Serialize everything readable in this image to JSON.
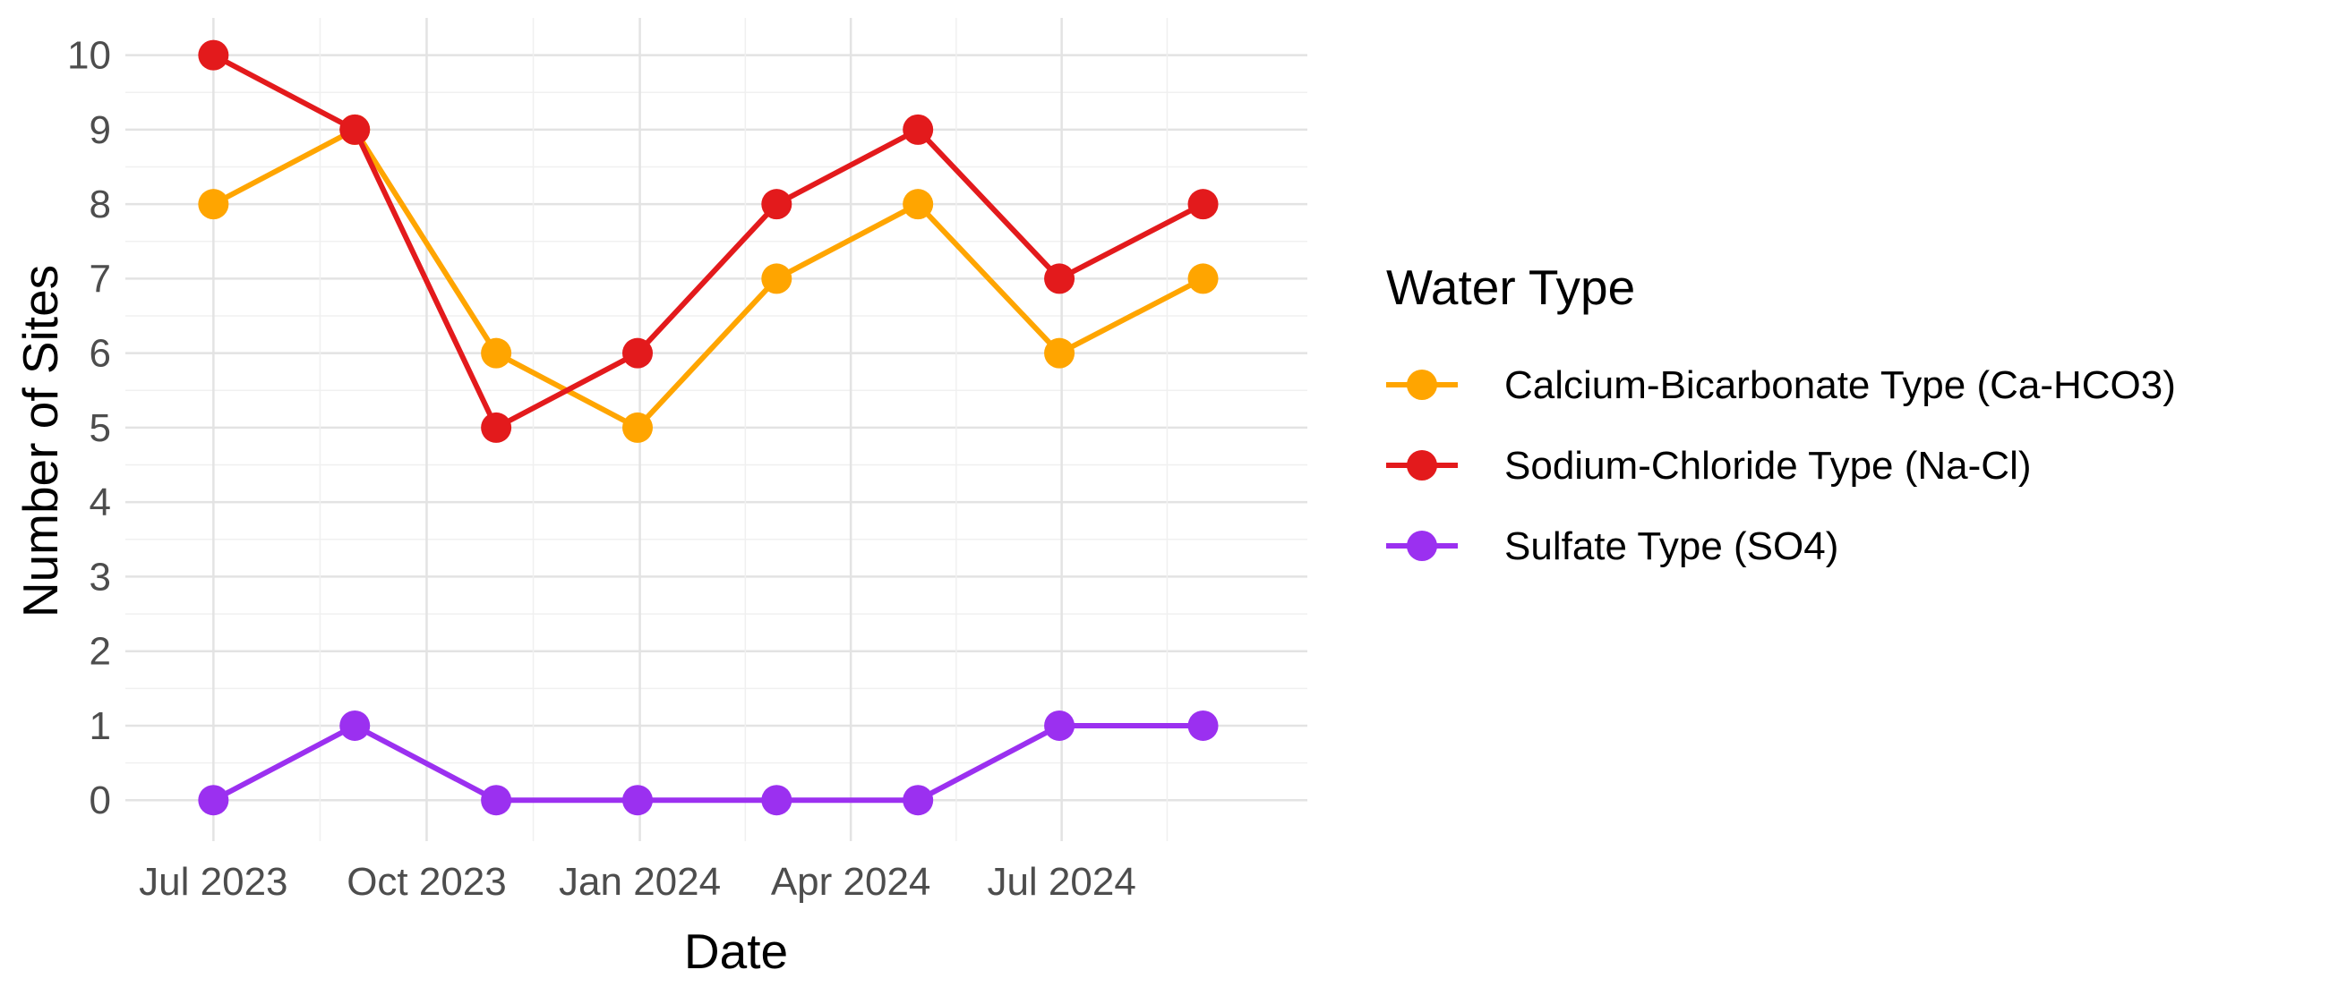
{
  "chart_data": {
    "type": "line",
    "xlabel": "Date",
    "ylabel": "Number of Sites",
    "x": [
      "2023-07-01",
      "2023-08-31",
      "2023-10-31",
      "2023-12-31",
      "2024-02-29",
      "2024-04-30",
      "2024-06-30",
      "2024-08-31"
    ],
    "x_ticks": [
      {
        "date": "2023-07-01",
        "label": "Jul 2023"
      },
      {
        "date": "2023-10-01",
        "label": "Oct 2023"
      },
      {
        "date": "2024-01-01",
        "label": "Jan 2024"
      },
      {
        "date": "2024-04-01",
        "label": "Apr 2024"
      },
      {
        "date": "2024-07-01",
        "label": "Jul 2024"
      }
    ],
    "xlim": [
      "2023-05-24",
      "2024-10-15"
    ],
    "y_ticks": [
      0,
      1,
      2,
      3,
      4,
      5,
      6,
      7,
      8,
      9,
      10
    ],
    "ylim": [
      -0.55,
      10.5
    ],
    "grid": true,
    "legend_title": "Water Type",
    "legend_position": "right",
    "series": [
      {
        "name": "Calcium-Bicarbonate Type (Ca-HCO3)",
        "color": "#FFA500",
        "values": [
          8,
          9,
          6,
          5,
          7,
          8,
          6,
          7
        ]
      },
      {
        "name": "Sodium-Chloride Type (Na-Cl)",
        "color": "#E31A1C",
        "values": [
          10,
          9,
          5,
          6,
          8,
          9,
          7,
          8
        ]
      },
      {
        "name": "Sulfate Type (SO4)",
        "color": "#9B30F0",
        "values": [
          0,
          1,
          0,
          0,
          0,
          0,
          1,
          1
        ]
      }
    ]
  }
}
